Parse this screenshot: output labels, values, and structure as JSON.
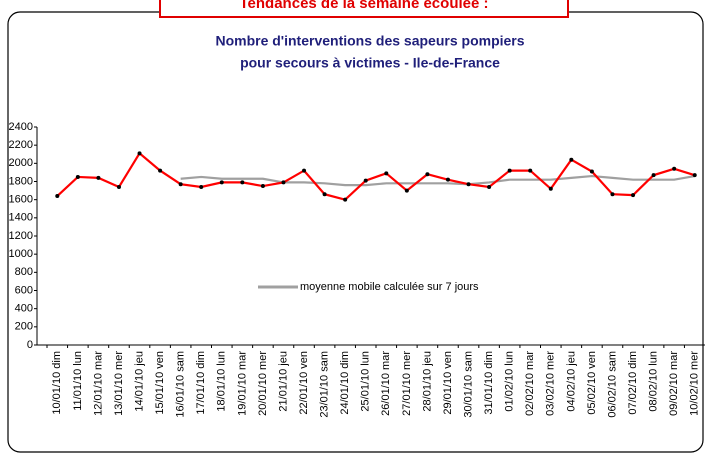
{
  "header": "Tendances de la semaine écoulée :",
  "chart_data": {
    "type": "line",
    "title": [
      "Nombre d'interventions des sapeurs pompiers",
      "pour secours à victimes - Ile-de-France"
    ],
    "categories": [
      "10/01/10 dim",
      "11/01/10 lun",
      "12/01/10 mar",
      "13/01/10 mer",
      "14/01/10 jeu",
      "15/01/10 ven",
      "16/01/10 sam",
      "17/01/10 dim",
      "18/01/10 lun",
      "19/01/10 mar",
      "20/01/10 mer",
      "21/01/10 jeu",
      "22/01/10 ven",
      "23/01/10 sam",
      "24/01/10 dim",
      "25/01/10 lun",
      "26/01/10 mar",
      "27/01/10 mer",
      "28/01/10 jeu",
      "29/01/10 ven",
      "30/01/10 sam",
      "31/01/10 dim",
      "01/02/10 lun",
      "02/02/10 mar",
      "03/02/10 mer",
      "04/02/10 jeu",
      "05/02/10 ven",
      "06/02/10 sam",
      "07/02/10 dim",
      "08/02/10 lun",
      "09/02/10 mar",
      "10/02/10 mer"
    ],
    "series": [
      {
        "color": "#ff0000",
        "markers": true,
        "values": [
          1640,
          1850,
          1840,
          1740,
          2110,
          1920,
          1770,
          1740,
          1790,
          1790,
          1750,
          1790,
          1920,
          1660,
          1600,
          1810,
          1890,
          1700,
          1880,
          1820,
          1770,
          1740,
          1920,
          1920,
          1720,
          2040,
          1910,
          1660,
          1650,
          1870,
          1940,
          1870
        ]
      },
      {
        "name": "moyenne mobile calculée sur 7 jours",
        "color": "#a0a0a0",
        "markers": false,
        "values": [
          null,
          null,
          null,
          null,
          null,
          null,
          1830,
          1850,
          1830,
          1830,
          1830,
          1790,
          1790,
          1780,
          1760,
          1760,
          1780,
          1780,
          1780,
          1780,
          1770,
          1790,
          1820,
          1820,
          1820,
          1840,
          1860,
          1840,
          1820,
          1820,
          1820,
          1860
        ]
      }
    ],
    "ylim": [
      0,
      2400
    ],
    "yticks": [
      0,
      200,
      400,
      600,
      800,
      1000,
      1200,
      1400,
      1600,
      1800,
      2000,
      2200,
      2400
    ],
    "legend": "center"
  }
}
